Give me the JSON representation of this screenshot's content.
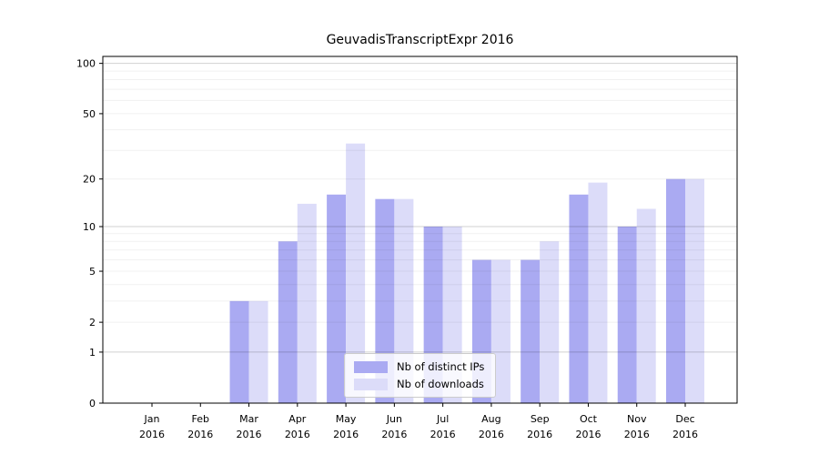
{
  "chart_data": {
    "type": "bar",
    "title": "GeuvadisTranscriptExpr 2016",
    "year_label": "2016",
    "categories": [
      "Jan",
      "Feb",
      "Mar",
      "Apr",
      "May",
      "Jun",
      "Jul",
      "Aug",
      "Sep",
      "Oct",
      "Nov",
      "Dec"
    ],
    "series": [
      {
        "name": "Nb of distinct IPs",
        "color": "#aaaaf2",
        "values": [
          0,
          0,
          3,
          8,
          16,
          15,
          10,
          6,
          6,
          16,
          10,
          20
        ]
      },
      {
        "name": "Nb of downloads",
        "color": "#dcdcf9",
        "values": [
          0,
          0,
          3,
          14,
          33,
          15,
          10,
          6,
          8,
          19,
          13,
          20
        ]
      }
    ],
    "yscale": "log1p",
    "ylim": [
      0,
      110
    ],
    "ytick_labels": [
      "100",
      "50",
      "20",
      "10",
      "5",
      "2",
      "1",
      "0"
    ],
    "ytick_values": [
      100,
      50,
      20,
      10,
      5,
      2,
      1,
      0
    ],
    "grid_major": [
      1,
      10,
      100
    ],
    "grid_minor": [
      2,
      3,
      4,
      5,
      6,
      7,
      8,
      9,
      20,
      30,
      40,
      50,
      60,
      70,
      80,
      90
    ],
    "grid_major_color": "rgba(0,0,0,0.18)",
    "grid_minor_color": "rgba(0,0,0,0.06)",
    "axis_color": "#000000",
    "legend_position": "lower center",
    "xlabel": "",
    "ylabel": ""
  }
}
